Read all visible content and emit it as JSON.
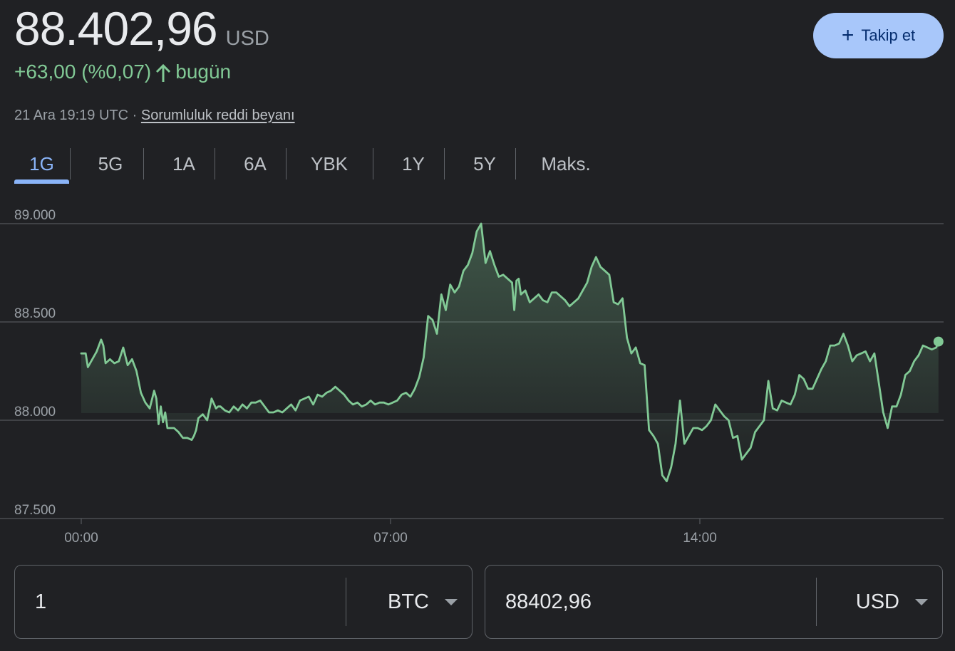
{
  "header": {
    "price": "88.402,96",
    "currency": "USD",
    "change": "+63,00 (%0,07)",
    "change_suffix": "bugün",
    "timestamp": "21 Ara 19:19 UTC",
    "separator": "·",
    "disclaimer_link": "Sorumluluk reddi beyanı",
    "follow_button": "Takip et",
    "accent_up": "#81c995",
    "follow_bg": "#a8c7fa"
  },
  "tabs": [
    {
      "label": "1G",
      "active": true
    },
    {
      "label": "5G",
      "active": false
    },
    {
      "label": "1A",
      "active": false
    },
    {
      "label": "6A",
      "active": false
    },
    {
      "label": "YBK",
      "active": false
    },
    {
      "label": "1Y",
      "active": false
    },
    {
      "label": "5Y",
      "active": false
    },
    {
      "label": "Maks.",
      "active": false
    }
  ],
  "chart_data": {
    "type": "area",
    "y_tick_labels": [
      "89.000",
      "88.500",
      "88.000",
      "87.500"
    ],
    "y_ticks": [
      89000,
      88500,
      88000,
      87500
    ],
    "ylim": [
      87500,
      89000
    ],
    "x_tick_labels": [
      "00:00",
      "07:00",
      "14:00"
    ],
    "x_ticks": [
      0,
      7,
      14
    ],
    "xlim": [
      0,
      19.4
    ],
    "grid": true,
    "line_color": "#81c995",
    "series": [
      {
        "x": [
          0,
          0.1,
          0.15,
          0.25,
          0.35,
          0.45,
          0.5,
          0.55,
          0.65,
          0.75,
          0.85,
          0.95,
          1.05,
          1.15,
          1.25,
          1.35,
          1.45,
          1.55,
          1.65,
          1.7,
          1.75,
          1.8,
          1.85,
          1.9,
          1.95,
          2.05,
          2.1,
          2.2,
          2.3,
          2.4,
          2.5,
          2.55,
          2.6,
          2.65,
          2.75,
          2.85,
          2.95,
          3.05,
          3.1,
          3.15,
          3.25,
          3.35,
          3.45,
          3.55,
          3.65,
          3.75,
          3.85,
          3.95,
          4.05,
          4.15,
          4.25,
          4.35,
          4.45,
          4.55,
          4.65,
          4.75,
          4.85,
          4.95,
          5.05,
          5.15,
          5.25,
          5.35,
          5.45,
          5.55,
          5.65,
          5.75,
          5.85,
          5.95,
          6.05,
          6.15,
          6.25,
          6.35,
          6.45,
          6.55,
          6.65,
          6.75,
          6.85,
          6.95,
          7.05,
          7.15,
          7.25,
          7.35,
          7.45,
          7.55,
          7.65,
          7.75,
          7.85,
          7.95,
          8.05,
          8.15,
          8.25,
          8.35,
          8.45,
          8.55,
          8.65,
          8.75,
          8.85,
          8.95,
          9.05,
          9.15,
          9.25,
          9.35,
          9.45,
          9.55,
          9.65,
          9.75,
          9.8,
          9.85,
          9.9,
          9.95,
          10.05,
          10.15,
          10.25,
          10.35,
          10.45,
          10.55,
          10.65,
          10.75,
          10.85,
          10.95,
          11.05,
          11.15,
          11.25,
          11.35,
          11.45,
          11.55,
          11.65,
          11.75,
          11.85,
          11.95,
          12.05,
          12.15,
          12.25,
          12.35,
          12.45,
          12.55,
          12.65,
          12.75,
          12.85,
          12.95,
          13.05,
          13.15,
          13.25,
          13.35,
          13.45,
          13.55,
          13.65,
          13.75,
          13.85,
          13.95,
          14.05,
          14.15,
          14.25,
          14.35,
          14.45,
          14.55,
          14.65,
          14.75,
          14.85,
          14.95,
          15.05,
          15.15,
          15.25,
          15.35,
          15.45,
          15.55,
          15.65,
          15.75,
          15.85,
          15.95,
          16.05,
          16.15,
          16.25,
          16.35,
          16.45,
          16.55,
          16.65,
          16.75,
          16.85,
          16.95,
          17.05,
          17.15,
          17.25,
          17.35,
          17.45,
          17.55,
          17.65,
          17.75,
          17.85,
          17.95,
          18.05,
          18.15,
          18.25,
          18.35,
          18.45,
          18.55,
          18.65,
          18.75,
          18.85,
          18.95,
          19.05,
          19.15,
          19.25,
          19.35,
          19.4
        ],
        "y": [
          88340,
          88340,
          88270,
          88310,
          88350,
          88410,
          88380,
          88290,
          88310,
          88290,
          88300,
          88370,
          88280,
          88310,
          88250,
          88140,
          88090,
          88060,
          88150,
          88110,
          87980,
          88070,
          87990,
          88040,
          87960,
          87960,
          87960,
          87940,
          87910,
          87910,
          87900,
          87920,
          87950,
          88010,
          88030,
          88000,
          88110,
          88060,
          88070,
          88070,
          88050,
          88040,
          88070,
          88050,
          88080,
          88060,
          88090,
          88090,
          88100,
          88070,
          88040,
          88040,
          88050,
          88040,
          88060,
          88080,
          88050,
          88100,
          88110,
          88120,
          88080,
          88130,
          88120,
          88140,
          88150,
          88170,
          88150,
          88130,
          88100,
          88080,
          88090,
          88070,
          88080,
          88100,
          88080,
          88090,
          88090,
          88080,
          88090,
          88100,
          88130,
          88140,
          88120,
          88160,
          88220,
          88320,
          88530,
          88510,
          88440,
          88640,
          88560,
          88690,
          88650,
          88680,
          88760,
          88790,
          88850,
          88960,
          89000,
          88800,
          88860,
          88790,
          88730,
          88740,
          88720,
          88700,
          88560,
          88710,
          88720,
          88640,
          88660,
          88600,
          88620,
          88640,
          88610,
          88600,
          88650,
          88650,
          88630,
          88610,
          88580,
          88600,
          88620,
          88660,
          88700,
          88780,
          88830,
          88780,
          88760,
          88740,
          88600,
          88590,
          88620,
          88420,
          88340,
          88370,
          88290,
          88280,
          87950,
          87920,
          87880,
          87720,
          87690,
          87760,
          87880,
          88100,
          87880,
          87920,
          87960,
          87960,
          87950,
          87970,
          88000,
          88080,
          88050,
          88020,
          88000,
          87910,
          87920,
          87800,
          87830,
          87860,
          87940,
          87970,
          88000,
          88200,
          88060,
          88050,
          88100,
          88090,
          88080,
          88130,
          88230,
          88210,
          88160,
          88160,
          88210,
          88260,
          88300,
          88380,
          88380,
          88390,
          88440,
          88380,
          88300,
          88330,
          88340,
          88350,
          88300,
          88340,
          88190,
          88040,
          87960,
          88070,
          88070,
          88130,
          88230,
          88250,
          88300,
          88330,
          88380,
          88370,
          88360,
          88370,
          88400
        ]
      }
    ]
  },
  "converter": {
    "left_amount": "1",
    "left_unit": "BTC",
    "right_amount": "88402,96",
    "right_unit": "USD"
  }
}
